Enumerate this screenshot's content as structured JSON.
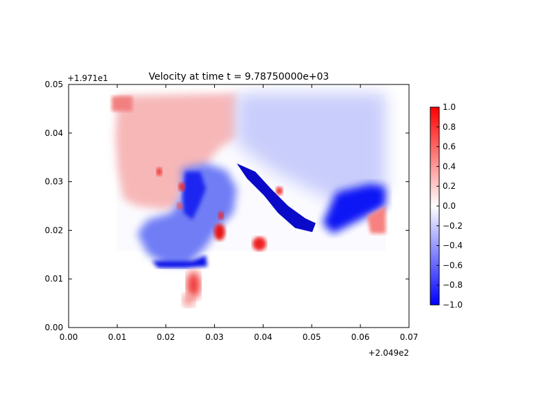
{
  "chart_data": {
    "type": "heatmap",
    "title": "Velocity at time t = 9.78750000e+03",
    "x_offset_label": "+2.049e2",
    "y_offset_label": "+1.971e1",
    "xlim": [
      0.0,
      0.07
    ],
    "ylim": [
      0.0,
      0.05
    ],
    "x_ticks": [
      "0.00",
      "0.01",
      "0.02",
      "0.03",
      "0.04",
      "0.05",
      "0.06",
      "0.07"
    ],
    "y_ticks": [
      "0.00",
      "0.01",
      "0.02",
      "0.03",
      "0.04",
      "0.05"
    ],
    "colorbar": {
      "colormap": "bwr",
      "range": [
        -1.0,
        1.0
      ],
      "ticks": [
        "1.0",
        "0.8",
        "0.6",
        "0.4",
        "0.2",
        "0.0",
        "−0.2",
        "−0.4",
        "−0.6",
        "−0.8",
        "−1.0"
      ],
      "colors": {
        "low": "#0000ff",
        "mid": "#ffffff",
        "high": "#ff0000"
      }
    },
    "grid": false,
    "field_domain": {
      "x": [
        0.01,
        0.065
      ],
      "y": [
        0.004,
        0.048
      ]
    }
  }
}
